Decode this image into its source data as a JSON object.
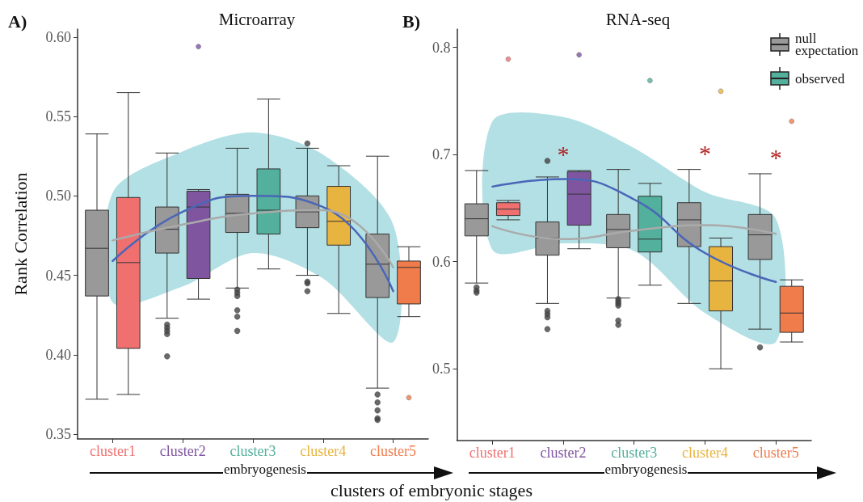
{
  "chart_data": [
    {
      "type": "box",
      "title": "Microarray",
      "ylabel": "Rank Correlation",
      "xlabel": "clusters of embryonic stages",
      "categories": [
        "cluster1",
        "cluster2",
        "cluster3",
        "cluster4",
        "cluster5"
      ],
      "ylim": [
        0.347,
        0.605
      ],
      "yticks": [
        0.35,
        {
          "value": 0.4,
          "label": "0.40"
        },
        0.45,
        {
          "value": 0.5,
          "label": "0.50"
        },
        0.55,
        {
          "value": 0.6,
          "label": "0.60"
        }
      ],
      "grid": false,
      "annotations": [
        "A)",
        "embryogenesis"
      ],
      "series": [
        {
          "color": "#999999",
          "boxes": [
            {
              "low": 0.372,
              "q1": 0.437,
              "median": 0.467,
              "q3": 0.491,
              "high": 0.539
            },
            {
              "low": 0.423,
              "q1": 0.464,
              "median": 0.479,
              "q3": 0.493,
              "high": 0.527,
              "outliers": [
                0.419,
                0.417,
                0.415,
                0.413,
                0.399
              ]
            },
            {
              "low": 0.442,
              "q1": 0.477,
              "median": 0.489,
              "q3": 0.501,
              "high": 0.53,
              "outliers": [
                0.441,
                0.439,
                0.437,
                0.428,
                0.424,
                0.415
              ]
            },
            {
              "low": 0.45,
              "q1": 0.48,
              "median": 0.49,
              "q3": 0.5,
              "high": 0.53,
              "outliers": [
                0.533,
                0.446,
                0.445,
                0.44
              ]
            },
            {
              "low": 0.379,
              "q1": 0.436,
              "median": 0.457,
              "q3": 0.476,
              "high": 0.525,
              "outliers": [
                0.375,
                0.37,
                0.365,
                0.36,
                0.359
              ]
            }
          ]
        },
        {
          "color": "#52b09c",
          "colors": [
            "#f07070",
            "#8055a0",
            "#52b09c",
            "#e8b440",
            "#f07c4c"
          ],
          "boxes": [
            {
              "low": 0.375,
              "q1": 0.404,
              "median": 0.458,
              "q3": 0.499,
              "high": 0.565
            },
            {
              "low": 0.435,
              "q1": 0.448,
              "median": 0.493,
              "q3": 0.503,
              "high": 0.504,
              "outliers": [
                0.594
              ]
            },
            {
              "low": 0.454,
              "q1": 0.476,
              "median": 0.491,
              "q3": 0.517,
              "high": 0.561
            },
            {
              "low": 0.426,
              "q1": 0.469,
              "median": 0.484,
              "q3": 0.506,
              "high": 0.519
            },
            {
              "low": 0.424,
              "q1": 0.432,
              "median": 0.455,
              "q3": 0.459,
              "high": 0.468,
              "outliers": [
                0.373
              ]
            }
          ]
        },
        {
          "type": "line",
          "color": "#4a66b8",
          "values": [
            0.459,
            0.49,
            0.5,
            0.493,
            0.44
          ],
          "lower": [
            0.433,
            0.443,
            0.464,
            0.448,
            0.408
          ],
          "upper": [
            0.502,
            0.528,
            0.54,
            0.526,
            0.482
          ]
        },
        {
          "type": "line",
          "color": "#aaaaaa",
          "values": [
            0.472,
            0.482,
            0.489,
            0.491,
            0.455
          ]
        }
      ]
    },
    {
      "type": "box",
      "title": "RNA-seq",
      "categories": [
        "cluster1",
        "cluster2",
        "cluster3",
        "cluster4",
        "cluster5"
      ],
      "ylim": [
        0.433,
        0.817
      ],
      "yticks": [
        0.5,
        0.6,
        0.7,
        0.8
      ],
      "grid": false,
      "legend": "top right",
      "annotations": [
        "B)",
        "embryogenesis",
        "*",
        "*",
        "*"
      ],
      "series": [
        {
          "name": "null expectation",
          "color": "#999999",
          "boxes": [
            {
              "low": 0.58,
              "q1": 0.624,
              "median": 0.64,
              "q3": 0.654,
              "high": 0.685,
              "outliers": [
                0.576,
                0.573,
                0.571
              ]
            },
            {
              "low": 0.561,
              "q1": 0.606,
              "median": 0.622,
              "q3": 0.637,
              "high": 0.679,
              "outliers": [
                0.694,
                0.554,
                0.551,
                0.548,
                0.537
              ]
            },
            {
              "low": 0.566,
              "q1": 0.613,
              "median": 0.63,
              "q3": 0.644,
              "high": 0.686,
              "outliers": [
                0.565,
                0.563,
                0.561,
                0.559,
                0.545,
                0.541
              ]
            },
            {
              "low": 0.561,
              "q1": 0.614,
              "median": 0.639,
              "q3": 0.655,
              "high": 0.686
            },
            {
              "low": 0.537,
              "q1": 0.602,
              "median": 0.625,
              "q3": 0.644,
              "high": 0.682,
              "outliers": [
                0.52
              ]
            }
          ]
        },
        {
          "name": "observed",
          "color": "#52b09c",
          "colors": [
            "#f07070",
            "#8055a0",
            "#52b09c",
            "#e8b440",
            "#f07c4c"
          ],
          "boxes": [
            {
              "low": 0.639,
              "q1": 0.643,
              "median": 0.649,
              "q3": 0.655,
              "high": 0.657,
              "outliers": [
                0.789
              ]
            },
            {
              "low": 0.612,
              "q1": 0.634,
              "median": 0.663,
              "q3": 0.684,
              "high": 0.685,
              "outliers": [
                0.793
              ]
            },
            {
              "low": 0.578,
              "q1": 0.609,
              "median": 0.621,
              "q3": 0.661,
              "high": 0.673,
              "outliers": [
                0.769
              ]
            },
            {
              "low": 0.5,
              "q1": 0.554,
              "median": 0.582,
              "q3": 0.614,
              "high": 0.622,
              "outliers": [
                0.759
              ]
            },
            {
              "low": 0.525,
              "q1": 0.534,
              "median": 0.552,
              "q3": 0.577,
              "high": 0.583,
              "outliers": [
                0.731
              ]
            }
          ]
        },
        {
          "type": "line",
          "color": "#4a66b8",
          "values": [
            0.67,
            0.677,
            0.658,
            0.608,
            0.581
          ],
          "lower": [
            0.611,
            0.617,
            0.61,
            0.552,
            0.525
          ],
          "upper": [
            0.731,
            0.735,
            0.706,
            0.665,
            0.64
          ]
        },
        {
          "type": "line",
          "color": "#aaaaaa",
          "values": [
            0.633,
            0.621,
            0.629,
            0.634,
            0.626
          ]
        }
      ]
    }
  ]
}
